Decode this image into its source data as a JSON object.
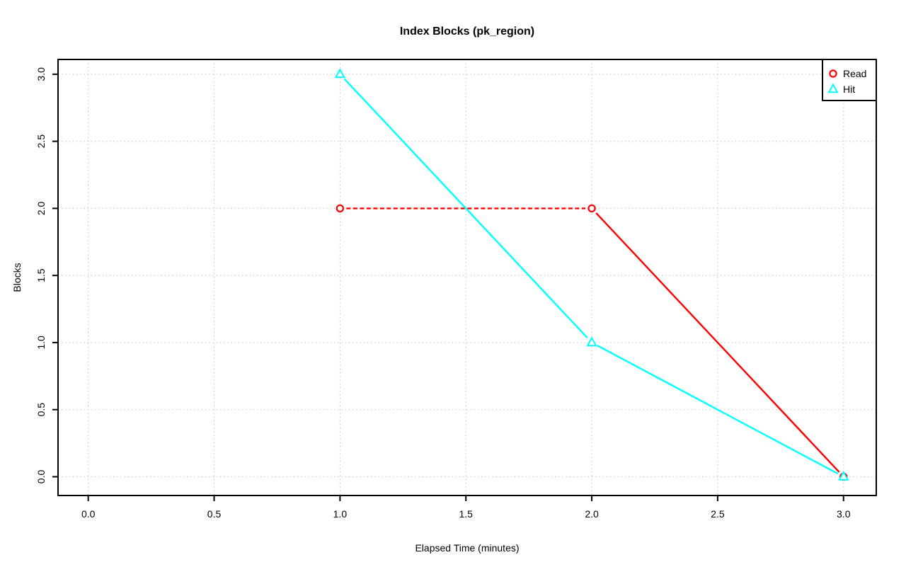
{
  "page": {
    "background": "#ffffff"
  },
  "chart_data": {
    "type": "line",
    "title": "Index Blocks (pk_region)",
    "xlabel": "Elapsed Time (minutes)",
    "ylabel": "Blocks",
    "x": [
      1,
      2,
      3
    ],
    "series": [
      {
        "name": "Read",
        "values": [
          2,
          2,
          0
        ],
        "color": "#ff0000",
        "marker": "circle",
        "segment_styles": [
          "dashed",
          "solid"
        ]
      },
      {
        "name": "Hit",
        "values": [
          3,
          1,
          0
        ],
        "color": "#00ffff",
        "marker": "triangle",
        "segment_styles": [
          "solid",
          "solid"
        ]
      }
    ],
    "xticks": [
      0,
      0.5,
      1,
      1.5,
      2,
      2.5,
      3
    ],
    "xtick_labels": [
      "0.0",
      "0.5",
      "1.0",
      "1.5",
      "2.0",
      "2.5",
      "3.0"
    ],
    "yticks": [
      0,
      0.5,
      1,
      1.5,
      2,
      2.5,
      3
    ],
    "ytick_labels": [
      "0.0",
      "0.5",
      "1.0",
      "1.5",
      "2.0",
      "2.5",
      "3.0"
    ],
    "xlim": [
      -0.12,
      3.13
    ],
    "ylim": [
      -0.14,
      3.11
    ],
    "grid": {
      "show": true,
      "style": "dotted",
      "color": "#c6c6c6"
    },
    "legend": {
      "position": "top-right",
      "entries": [
        {
          "label": "Read",
          "marker": "circle",
          "color": "#ff0000"
        },
        {
          "label": "Hit",
          "marker": "triangle",
          "color": "#00ffff"
        }
      ]
    },
    "axis_color": "#000000",
    "plot_background": "#ffffff"
  }
}
